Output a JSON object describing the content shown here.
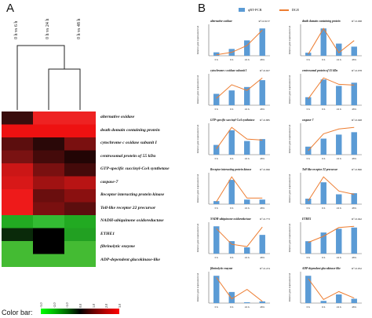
{
  "panels": {
    "a": "A",
    "b": "B"
  },
  "heatmap": {
    "columns": [
      "0 h vs 6 h",
      "0 h vs 24 h",
      "0 h vs 48 h"
    ],
    "rows": [
      "alternative oxidase",
      "death domain containing protein",
      "cytochrome c oxidase subunit I",
      "centrosomal protein of 55 kDa",
      "GTP-specific succinyl-CoA synthetase",
      "caspase-7",
      "Receptor interacting protein kinase",
      "Toll-like receptor 22 precursor",
      "NADH-ubiquinone oxidoreductase",
      "ETHE1",
      "fibrinolytic enzyme",
      "ADP-dependent glucokinase-like"
    ],
    "cell_colors": [
      [
        "#3a0d0d",
        "#ee2222",
        "#ee2222"
      ],
      [
        "#ee1111",
        "#ee1111",
        "#ee1111"
      ],
      [
        "#5c0e0e",
        "#2a0808",
        "#7a1010"
      ],
      [
        "#7a1212",
        "#440a0a",
        "#220505"
      ],
      [
        "#cc1616",
        "#7a1010",
        "#440a0a"
      ],
      [
        "#d81818",
        "#a01212",
        "#b81414"
      ],
      [
        "#ee1a1a",
        "#6a0e0e",
        "#8a1010"
      ],
      [
        "#ee1a1a",
        "#7a1010",
        "#5c0e0e"
      ],
      [
        "#22aa22",
        "#33bb33",
        "#22aa22"
      ],
      [
        "#0a2a0a",
        "#000000",
        "#22a022"
      ],
      [
        "#44bb33",
        "#000000",
        "#44bb33"
      ],
      [
        "#44bb33",
        "#44bb33",
        "#44bb33"
      ]
    ]
  },
  "colorbar": {
    "title": "Color bar:",
    "ticks": [
      "-3.0",
      "-2.0",
      "-1.0",
      "0.0",
      "1.0",
      "2.0",
      "3.0"
    ]
  },
  "legend": {
    "bar": "qRT-PCR",
    "line": "DGE"
  },
  "chart_data": [
    {
      "type": "bar",
      "title": "alternative oxidase",
      "r": "R²=0.9157",
      "categories": [
        "0 h",
        "6 h",
        "24 h",
        "48 h"
      ],
      "values": [
        1,
        2,
        4.5,
        8
      ],
      "line": [
        0.3,
        1,
        3,
        7.5
      ],
      "ylabel": "Relative gene expression level"
    },
    {
      "type": "bar",
      "title": "death domain containing protein",
      "r": "R²=0.068",
      "categories": [
        "0 h",
        "6 h",
        "24 h",
        "48 h"
      ],
      "values": [
        1,
        9,
        4,
        3
      ],
      "line": [
        0.5,
        9,
        1,
        5
      ],
      "ylabel": "Relative gene expression level"
    },
    {
      "type": "bar",
      "title": "cytochrome c oxidase subunit I",
      "r": "R²=0.927",
      "categories": [
        "0 h",
        "6 h",
        "24 h",
        "48 h"
      ],
      "values": [
        1,
        1.3,
        1.6,
        2.2
      ],
      "line": [
        0.6,
        1.8,
        1.3,
        2.4
      ],
      "ylabel": "Relative gene expression level"
    },
    {
      "type": "bar",
      "title": "centrosomal protein of 55 kDa",
      "r": "R²=0.978",
      "categories": [
        "0 h",
        "6 h",
        "24 h",
        "48 h"
      ],
      "values": [
        1,
        3.2,
        2.4,
        2.8
      ],
      "line": [
        0.8,
        3.4,
        2.6,
        2.5
      ],
      "ylabel": "Relative gene expression level"
    },
    {
      "type": "bar",
      "title": "GTP-specific succinyl-CoA synthetase",
      "r": "R²=0.885",
      "categories": [
        "0 h",
        "6 h",
        "24 h",
        "48 h"
      ],
      "values": [
        1,
        2.5,
        1.4,
        1.6
      ],
      "line": [
        0.6,
        2.8,
        1.6,
        1.5
      ],
      "ylabel": "Relative gene expression level"
    },
    {
      "type": "bar",
      "title": "caspase-7",
      "r": "R²=0.948",
      "categories": [
        "0 h",
        "6 h",
        "24 h",
        "48 h"
      ],
      "values": [
        1,
        2,
        2.5,
        2.8
      ],
      "line": [
        0.5,
        2.6,
        3.2,
        3.4
      ],
      "ylabel": "Relative gene expression level"
    },
    {
      "type": "bar",
      "title": "Receptor interacting protein kinase",
      "r": "R²=0.996",
      "categories": [
        "0 h",
        "6 h",
        "24 h",
        "48 h"
      ],
      "values": [
        1,
        8,
        1.5,
        1.5
      ],
      "line": [
        0.8,
        9,
        2,
        2
      ],
      "ylabel": "Relative gene expression level"
    },
    {
      "type": "bar",
      "title": "Toll-like receptor 22 precursor",
      "r": "R²=0.896",
      "categories": [
        "0 h",
        "6 h",
        "24 h",
        "48 h"
      ],
      "values": [
        1,
        4,
        1.8,
        2
      ],
      "line": [
        0.6,
        5,
        2.4,
        1.8
      ],
      "ylabel": "Relative gene expression level"
    },
    {
      "type": "bar",
      "title": "NADH-ubiquinone oxidoreductase",
      "r": "R²=0.773",
      "categories": [
        "0 h",
        "6 h",
        "24 h",
        "48 h"
      ],
      "values": [
        3.5,
        1.6,
        0.8,
        2.4
      ],
      "line": [
        3.2,
        1.2,
        0.9,
        3.4
      ],
      "ylabel": "Relative gene expression level"
    },
    {
      "type": "bar",
      "title": "ETHE1",
      "r": "R²=0.942",
      "categories": [
        "0 h",
        "6 h",
        "24 h",
        "48 h"
      ],
      "values": [
        1,
        1.7,
        2,
        2.1
      ],
      "line": [
        0.9,
        1.4,
        2.1,
        2.2
      ],
      "ylabel": "Relative gene expression level"
    },
    {
      "type": "bar",
      "title": "fibrinolytic enzyme",
      "r": "R²=0.474",
      "categories": [
        "0 h",
        "6 h",
        "24 h",
        "48 h"
      ],
      "values": [
        3.2,
        1.3,
        0.1,
        0.2
      ],
      "line": [
        3,
        0.5,
        1.6,
        0.2
      ],
      "ylabel": "Relative gene expression level"
    },
    {
      "type": "bar",
      "title": "ADP-dependent glucokinase-like",
      "r": "R²=0.952",
      "categories": [
        "0 h",
        "6 h",
        "24 h",
        "48 h"
      ],
      "values": [
        3.8,
        0.3,
        1.2,
        0.6
      ],
      "line": [
        3.4,
        0.5,
        1.6,
        0.7
      ],
      "ylabel": "Relative gene expression level"
    }
  ]
}
